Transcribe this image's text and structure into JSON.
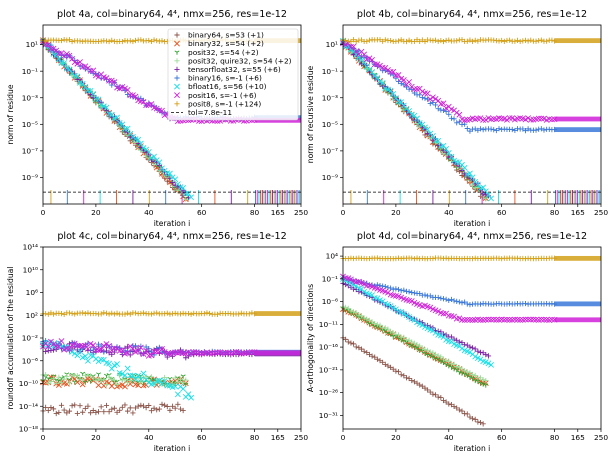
{
  "figure": {
    "series": [
      {
        "name": "binary64",
        "color": "#8c564b",
        "marker": "plus"
      },
      {
        "name": "binary32",
        "color": "#e8501c",
        "marker": "x"
      },
      {
        "name": "posit32",
        "color": "#2ca02c",
        "marker": "tri"
      },
      {
        "name": "posit32, quire32",
        "color": "#9edc9a",
        "marker": "plus"
      },
      {
        "name": "tensorfloat32",
        "color": "#7b1fa2",
        "marker": "plus"
      },
      {
        "name": "binary16",
        "color": "#3a78d8",
        "marker": "plus"
      },
      {
        "name": "bfloat16",
        "color": "#18e0e8",
        "marker": "x"
      },
      {
        "name": "posit16",
        "color": "#d020d8",
        "marker": "x"
      },
      {
        "name": "posit8",
        "color": "#d4a017",
        "marker": "plus"
      }
    ]
  },
  "chart_data": [
    {
      "id": "a",
      "type": "scatter",
      "title": "plot 4a, col=binary64, 4⁴, nmx=256, res=1e-12",
      "xlabel": "iteration i",
      "ylabel": "norm of residue",
      "yscale": "log",
      "ylim": [
        1e-11,
        300
      ],
      "yticks": [
        "10¹",
        "10⁻¹",
        "10⁻³",
        "10⁻⁵",
        "10⁻⁷",
        "10⁻⁹"
      ],
      "ytick_exponents": [
        1,
        -1,
        -3,
        -5,
        -7,
        -9
      ],
      "xticks": [
        "0",
        "20",
        "40",
        "60",
        "80",
        "165",
        "250"
      ],
      "legend": {
        "position": "top-right",
        "entries": [
          "binary64, s=53 (+1)",
          "binary32, s=54 (+2)",
          "posit32, s=54 (+2)",
          "posit32, quire32, s=54 (+2)",
          "tensorfloat32, s=55 (+6)",
          "binary16, s=-1 (+6)",
          "bfloat16, s=56 (+10)",
          "posit16, s=-1 (+6)",
          "posit8, s=-1 (+124)",
          "tol=7.8e-11"
        ]
      },
      "tol": 7.8e-11,
      "series": [
        {
          "name": "binary64",
          "start": 1.2,
          "end_x": 53,
          "end_log": -10.5
        },
        {
          "name": "binary32",
          "start": 1.2,
          "end_x": 54,
          "end_log": -10.5
        },
        {
          "name": "posit32",
          "start": 1.2,
          "end_x": 54,
          "end_log": -10.5
        },
        {
          "name": "posit32, quire32",
          "start": 1.2,
          "end_x": 54,
          "end_log": -10.5
        },
        {
          "name": "tensorfloat32",
          "start": 1.2,
          "end_x": 55,
          "end_log": -10.5
        },
        {
          "name": "binary16",
          "start": 1.2,
          "end_x": 48,
          "end_log": -4.5,
          "plateau_log": -4.5
        },
        {
          "name": "bfloat16",
          "start": 1.2,
          "end_x": 56,
          "end_log": -10.5
        },
        {
          "name": "posit16",
          "start": 1.2,
          "end_x": 50,
          "end_log": -4.7,
          "plateau_log": -4.7
        },
        {
          "name": "posit8",
          "plateau_log": 1.3
        }
      ]
    },
    {
      "id": "b",
      "type": "scatter",
      "title": "plot 4b, col=binary64, 4⁴, nmx=256, res=1e-12",
      "xlabel": "iteration i",
      "ylabel": "norm of recursive residue",
      "yscale": "log",
      "ylim": [
        1e-11,
        300
      ],
      "yticks": [
        "10¹",
        "10⁻¹",
        "10⁻³",
        "10⁻⁵",
        "10⁻⁷",
        "10⁻⁹"
      ],
      "ytick_exponents": [
        1,
        -1,
        -3,
        -5,
        -7,
        -9
      ],
      "xticks": [
        "0",
        "20",
        "40",
        "60",
        "80",
        "165",
        "250"
      ],
      "tol": 7.8e-11,
      "series": [
        {
          "name": "binary64",
          "start": 1.2,
          "end_x": 53,
          "end_log": -10.5
        },
        {
          "name": "binary32",
          "start": 1.2,
          "end_x": 54,
          "end_log": -10.5
        },
        {
          "name": "posit32",
          "start": 1.2,
          "end_x": 54,
          "end_log": -10.5
        },
        {
          "name": "posit32, quire32",
          "start": 1.2,
          "end_x": 54,
          "end_log": -10.5
        },
        {
          "name": "tensorfloat32",
          "start": 1.2,
          "end_x": 55,
          "end_log": -10.5
        },
        {
          "name": "binary16",
          "start": 1.2,
          "end_x": 48,
          "end_log": -5.4,
          "plateau_log": -5.4
        },
        {
          "name": "bfloat16",
          "start": 1.2,
          "end_x": 56,
          "end_log": -10.5
        },
        {
          "name": "posit16",
          "start": 1.2,
          "end_x": 46,
          "end_log": -4.6,
          "plateau_log": -4.6
        },
        {
          "name": "posit8",
          "plateau_log": 1.3
        }
      ]
    },
    {
      "id": "c",
      "type": "scatter",
      "title": "plot 4c, col=binary64, 4⁴, nmx=256, res=1e-12",
      "xlabel": "iteration i",
      "ylabel": "roundoff accumulation of the residual",
      "yscale": "log",
      "ylim": [
        1e-18,
        100000000000000.0
      ],
      "yticks": [
        "10¹⁴",
        "10¹⁰",
        "10⁶",
        "10²",
        "10⁻²",
        "10⁻⁶",
        "10⁻¹⁰",
        "10⁻¹⁴",
        "10⁻¹⁸"
      ],
      "ytick_exponents": [
        14,
        10,
        6,
        2,
        -2,
        -6,
        -10,
        -14,
        -18
      ],
      "xticks": [
        "0",
        "20",
        "40",
        "60",
        "80",
        "165",
        "250"
      ],
      "series": [
        {
          "name": "binary64",
          "start": -14.6,
          "end_x": 53,
          "end_log": -14.3
        },
        {
          "name": "binary32",
          "start": -9.5,
          "end_x": 54,
          "end_log": -10.0
        },
        {
          "name": "posit32",
          "start": -8.8,
          "end_x": 54,
          "end_log": -9.5
        },
        {
          "name": "posit32, quire32",
          "start": -9.2,
          "end_x": 54,
          "end_log": -9.6
        },
        {
          "name": "tensorfloat32",
          "start": -3.6,
          "end_x": 55,
          "end_log": -4.8,
          "plateau_log": -4.8
        },
        {
          "name": "binary16",
          "start": -3.2,
          "end_x": 48,
          "end_log": -4.5,
          "plateau_log": -4.5
        },
        {
          "name": "bfloat16",
          "start": -2.6,
          "end_x": 56,
          "end_log": -12.0
        },
        {
          "name": "posit16",
          "start": -3.0,
          "end_x": 45,
          "end_log": -4.6,
          "plateau_log": -4.6
        },
        {
          "name": "posit8",
          "plateau_log": 2.3
        }
      ]
    },
    {
      "id": "d",
      "type": "scatter",
      "title": "plot 4d, col=binary64, 4⁴, nmx=256, res=1e-12",
      "xlabel": "iteration i",
      "ylabel": "A-orthogonality of directions",
      "yscale": "log",
      "ylim": [
        1e-34,
        1000000.0
      ],
      "yticks": [
        "10⁴",
        "10⁻¹",
        "10⁻⁶",
        "10⁻¹¹",
        "10⁻¹⁶",
        "10⁻²¹",
        "10⁻²⁶",
        "10⁻³¹"
      ],
      "ytick_exponents": [
        4,
        -1,
        -6,
        -11,
        -16,
        -21,
        -26,
        -31
      ],
      "xticks": [
        "0",
        "20",
        "40",
        "60",
        "80",
        "165",
        "250"
      ],
      "series": [
        {
          "name": "binary64",
          "start": -14.0,
          "end_x": 53,
          "end_log": -33.0
        },
        {
          "name": "binary32",
          "start": -7.5,
          "end_x": 54,
          "end_log": -24.0
        },
        {
          "name": "posit32",
          "start": -7.5,
          "end_x": 54,
          "end_log": -24.5
        },
        {
          "name": "posit32, quire32",
          "start": -7.0,
          "end_x": 54,
          "end_log": -23.5
        },
        {
          "name": "tensorfloat32",
          "start": -2.0,
          "end_x": 55,
          "end_log": -18.0
        },
        {
          "name": "binary16",
          "start": -1.0,
          "end_x": 48,
          "end_log": -6.5,
          "plateau_log": -6.5
        },
        {
          "name": "bfloat16",
          "start": -1.0,
          "end_x": 56,
          "end_log": -20.0
        },
        {
          "name": "posit16",
          "start": -0.5,
          "end_x": 45,
          "end_log": -10.0,
          "plateau_log": -10.0
        },
        {
          "name": "posit8",
          "plateau_log": 3.5
        }
      ]
    }
  ]
}
